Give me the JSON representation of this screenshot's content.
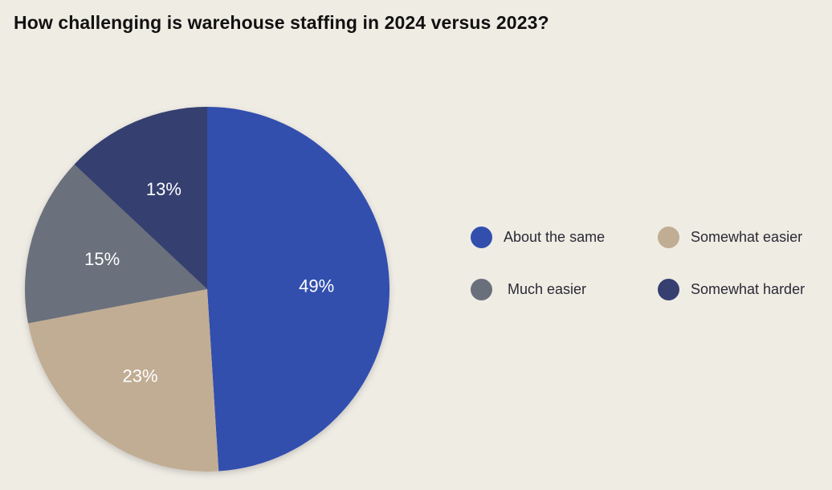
{
  "chart_data": {
    "type": "pie",
    "title": "How challenging is warehouse staffing in 2024 versus 2023?",
    "slices": [
      {
        "label": "About the same",
        "value": 49,
        "display": "49%",
        "color": "#334fae"
      },
      {
        "label": "Somewhat easier",
        "value": 23,
        "display": "23%",
        "color": "#c1ad94"
      },
      {
        "label": "Much easier",
        "value": 15,
        "display": "15%",
        "color": "#6a707b"
      },
      {
        "label": "Somewhat harder",
        "value": 13,
        "display": "13%",
        "color": "#363f70"
      }
    ],
    "start": "top",
    "direction": "clockwise",
    "legend_position": "right"
  }
}
